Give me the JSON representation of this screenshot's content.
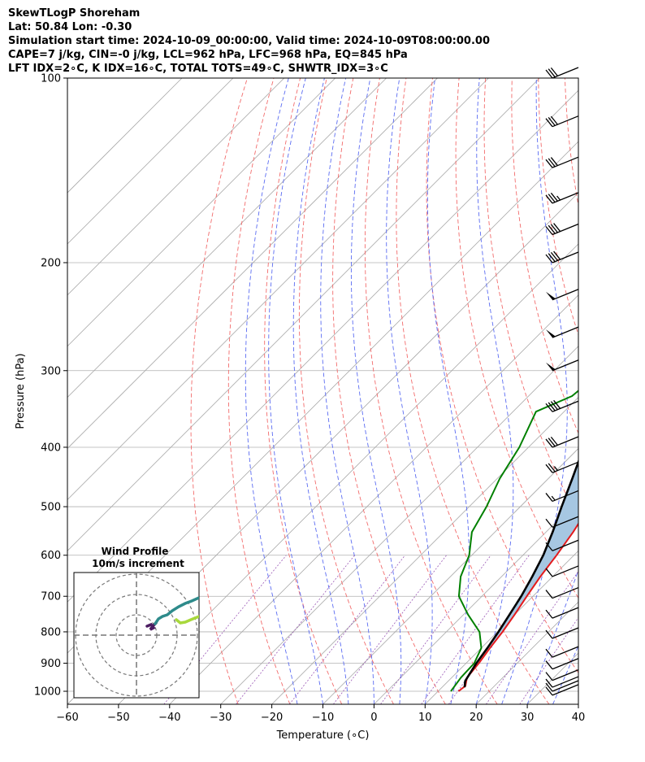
{
  "header": {
    "line1": "SkewTLogP Shoreham",
    "line2": "Lat: 50.84   Lon: -0.30",
    "line3": "Simulation start time: 2024-10-09_00:00:00, Valid time: 2024-10-09T08:00:00.00",
    "line4": "CAPE=7 j/kg, CIN=-0 j/kg, LCL=962 hPa, LFC=968 hPa, EQ=845 hPa",
    "line5": "LFT IDX=2∘C, K IDX=16∘C, TOTAL TOTS=49∘C, SHWTR_IDX=3∘C"
  },
  "chart_data": {
    "type": "line",
    "title": "SkewTLogP Shoreham",
    "xlabel": "Temperature (∘C)",
    "ylabel": "Pressure (hPa)",
    "xlim": [
      -60,
      40
    ],
    "ylim": [
      1050,
      100
    ],
    "yscale": "log",
    "grid": true,
    "x_ticks": [
      -60,
      -50,
      -40,
      -30,
      -20,
      -10,
      0,
      10,
      20,
      30,
      40
    ],
    "x_tick_labels": [
      "−60",
      "−50",
      "−40",
      "−30",
      "−20",
      "−10",
      "0",
      "10",
      "20",
      "30",
      "40"
    ],
    "y_ticks": [
      1000,
      900,
      800,
      700,
      600,
      500,
      400,
      300,
      200,
      100
    ],
    "y_tick_labels": [
      "1000",
      "900",
      "800",
      "700",
      "600",
      "500",
      "400",
      "300",
      "200",
      "100"
    ],
    "series": [
      {
        "role": "temperature",
        "color": "#e41a1c",
        "points": [
          [
            1000,
            14.0
          ],
          [
            980,
            14.3
          ],
          [
            950,
            13.0
          ],
          [
            900,
            12.5
          ],
          [
            850,
            11.7
          ],
          [
            800,
            11.0
          ],
          [
            750,
            10.0
          ],
          [
            700,
            8.8
          ],
          [
            650,
            7.6
          ],
          [
            600,
            6.6
          ],
          [
            550,
            5.3
          ],
          [
            500,
            3.5
          ],
          [
            470,
            1.2
          ],
          [
            440,
            -0.5
          ],
          [
            400,
            -0.7
          ],
          [
            350,
            -0.8
          ],
          [
            300,
            -1.5
          ],
          [
            250,
            -2.2
          ],
          [
            220,
            -2.0
          ],
          [
            200,
            1.0
          ],
          [
            180,
            5.3
          ],
          [
            160,
            8.0
          ],
          [
            140,
            12.5
          ],
          [
            120,
            16.0
          ],
          [
            110,
            18.4
          ],
          [
            100,
            20.2
          ]
        ]
      },
      {
        "role": "dewpoint",
        "color": "#008000",
        "points": [
          [
            1000,
            12.5
          ],
          [
            950,
            11.8
          ],
          [
            900,
            11.6
          ],
          [
            850,
            10.0
          ],
          [
            800,
            6.5
          ],
          [
            750,
            0.9
          ],
          [
            700,
            -4.5
          ],
          [
            650,
            -8.0
          ],
          [
            600,
            -10.5
          ],
          [
            550,
            -14.5
          ],
          [
            500,
            -16.6
          ],
          [
            450,
            -19.5
          ],
          [
            400,
            -21.8
          ],
          [
            350,
            -25.5
          ],
          [
            330,
            -21.5
          ],
          [
            300,
            -20.5
          ],
          [
            250,
            -19.3
          ],
          [
            220,
            -19.8
          ],
          [
            200,
            -20.0
          ],
          [
            180,
            -18.5
          ],
          [
            160,
            -16.8
          ],
          [
            150,
            -15.5
          ],
          [
            140,
            -13.9
          ],
          [
            120,
            -9.0
          ],
          [
            100,
            -3.5
          ]
        ]
      },
      {
        "role": "parcel",
        "color": "#000000",
        "points": [
          [
            985,
            14.4
          ],
          [
            962,
            13.3
          ],
          [
            900,
            12.0
          ],
          [
            850,
            11.2
          ],
          [
            800,
            10.2
          ],
          [
            750,
            9.0
          ],
          [
            700,
            7.7
          ],
          [
            650,
            6.0
          ],
          [
            600,
            4.0
          ],
          [
            550,
            1.3
          ],
          [
            500,
            -1.9
          ],
          [
            450,
            -5.3
          ],
          [
            400,
            -9.2
          ],
          [
            350,
            -14.0
          ],
          [
            300,
            -20.0
          ],
          [
            250,
            -27.0
          ],
          [
            200,
            -35.5
          ],
          [
            150,
            -46.5
          ],
          [
            100,
            -64.0
          ]
        ]
      }
    ],
    "shading": "area between parcel and temperature profiles (blue)",
    "wind_barbs": {
      "pressures": [
        100,
        120,
        140,
        160,
        180,
        200,
        230,
        265,
        300,
        350,
        400,
        440,
        490,
        540,
        590,
        650,
        705,
        760,
        820,
        880,
        920,
        960,
        985,
        1000,
        1015
      ],
      "speeds_kt": [
        30,
        30,
        30,
        35,
        40,
        40,
        50,
        50,
        50,
        40,
        30,
        25,
        15,
        10,
        10,
        10,
        10,
        10,
        10,
        10,
        10,
        10,
        10,
        10,
        10
      ]
    },
    "wind_profile_inset": {
      "title": "Wind Profile",
      "subtitle": "10m/s increment"
    }
  }
}
